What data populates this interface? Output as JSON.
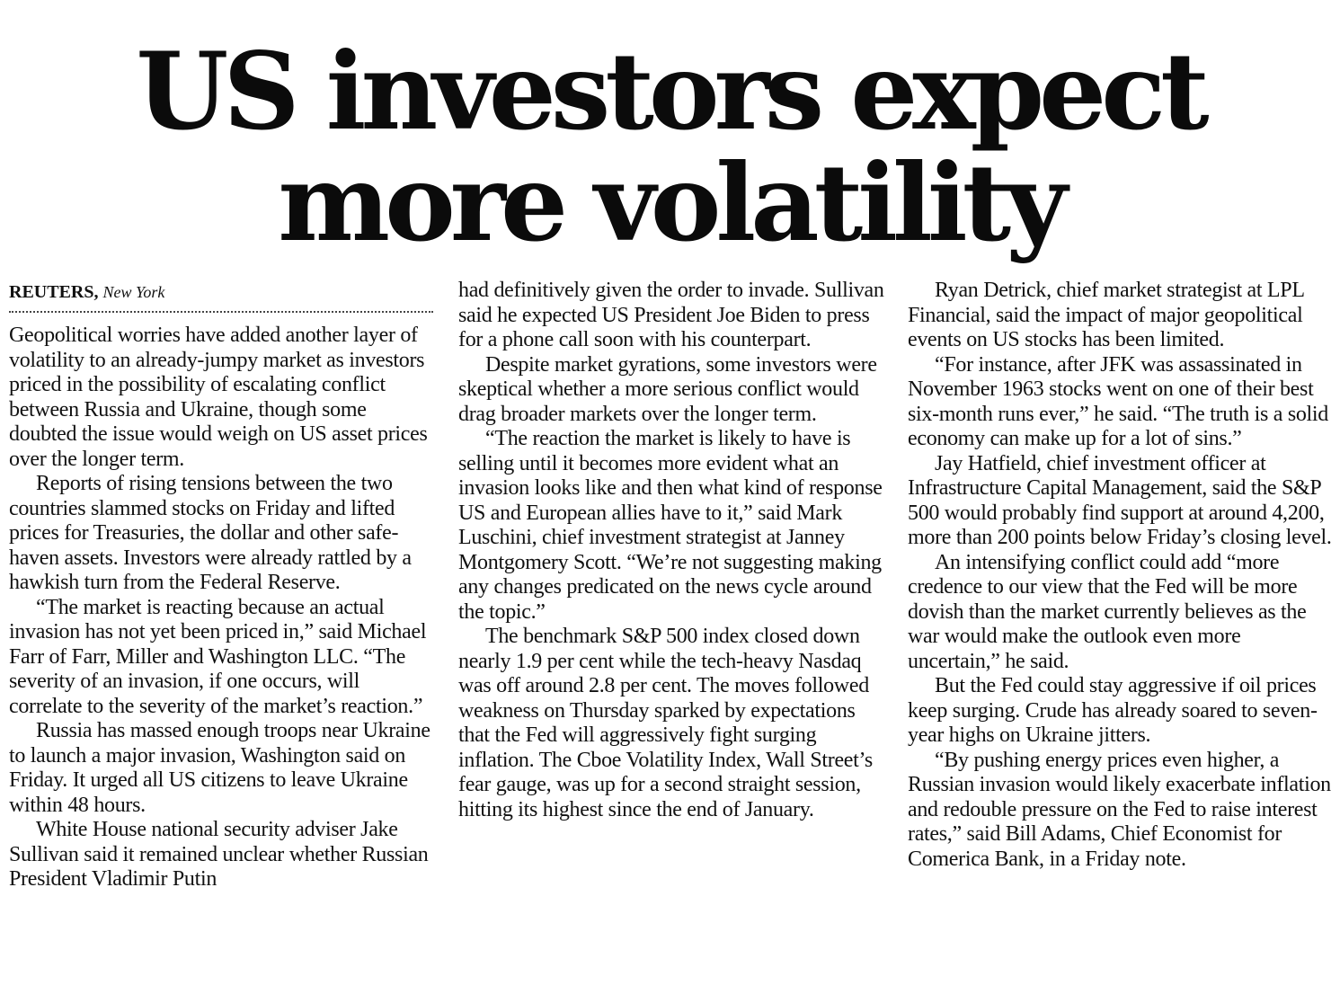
{
  "headline": {
    "line1": "US investors expect",
    "line2": "more volatility"
  },
  "byline": {
    "agency": "REUTERS,",
    "location": "New York"
  },
  "columns": [
    {
      "paragraphs": [
        "Geopolitical worries have added another layer of volatility to an already-jumpy market as investors priced in the possibility of escalating conflict between Russia and Ukraine, though some doubted the issue would weigh on US asset prices over the longer term.",
        "Reports of rising tensions between the two countries slammed stocks on Friday and lifted prices for Treasuries, the dollar and other safe-haven assets. Investors were already rattled by a hawkish turn from the Federal Reserve.",
        "“The market is reacting because an actual invasion has not yet been priced in,” said Michael Farr of Farr, Miller and Washington LLC. “The severity of an invasion, if one occurs, will correlate to the severity of the market’s reaction.”",
        "Russia has massed enough troops near Ukraine to launch a major invasion, Washington said on Friday. It urged all US citizens to leave Ukraine within 48 hours.",
        "White House national security adviser Jake Sullivan said it remained unclear whether Russian President Vladimir Putin"
      ]
    },
    {
      "paragraphs": [
        "had definitively given the order to invade. Sullivan said he expected US President Joe Biden to press for a phone call soon with his counterpart.",
        "Despite market gyrations, some investors were skeptical whether a more serious conflict would drag broader markets over the longer term.",
        "“The reaction the market is likely to have is selling until it becomes more evident what an invasion looks like and then what kind of response US and European allies have to it,” said Mark Luschini, chief investment strategist at Janney Montgomery Scott. “We’re not suggesting making any changes predicated on the news cycle around the topic.”",
        "The benchmark S&P 500 index closed down nearly 1.9 per cent while the tech-heavy Nasdaq was off around 2.8 per cent. The moves followed weakness on Thursday sparked by expectations that the Fed will aggressively fight surging inflation. The Cboe Volatility Index, Wall Street’s fear gauge, was up for a second straight session, hitting its highest since the end of January."
      ]
    },
    {
      "paragraphs": [
        "Ryan Detrick, chief market strategist at LPL Financial, said the impact of major geopolitical events on US stocks has been limited.",
        "“For instance, after JFK was assassinated in November 1963 stocks went on one of their best six-month runs ever,” he said. “The truth is a solid economy can make up for a lot of sins.”",
        "Jay Hatfield, chief investment officer at Infrastructure Capital Management, said the S&P 500 would probably find support at around 4,200, more than 200 points below Friday’s closing level.",
        "An intensifying conflict could add “more credence to our view that the Fed will be more dovish than the market currently believes as the war would make the outlook even more uncertain,” he said.",
        "But the Fed could stay aggressive if oil prices keep surging. Crude has already soared to seven-year highs on Ukraine jitters.",
        "“By pushing energy prices even higher, a Russian invasion would likely exacerbate inflation and redouble pressure on the Fed to raise interest rates,” said Bill Adams, Chief Economist for Comerica Bank, in a Friday note."
      ]
    }
  ]
}
